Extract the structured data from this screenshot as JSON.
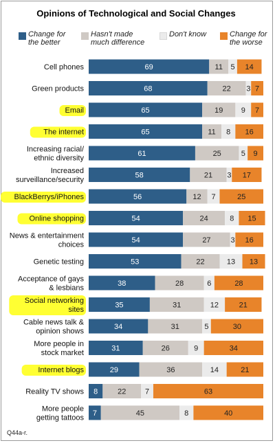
{
  "title": "Opinions of Technological and Social Changes",
  "footnote": "Q44a-r.",
  "colors": {
    "better": "#2e5e88",
    "no_difference": "#cfc9c4",
    "dont_know": "#ebebeb",
    "worse": "#e8842a",
    "highlight": "#ffff33"
  },
  "legend": {
    "better": [
      "Change for",
      "the better"
    ],
    "no_difference": [
      "Hasn't made",
      "much difference"
    ],
    "dont_know": [
      "Don't know"
    ],
    "worse": [
      "Change for",
      "the worse"
    ]
  },
  "chart_data": {
    "type": "bar",
    "stacked": true,
    "orientation": "horizontal",
    "title": "Opinions of Technological and Social Changes",
    "categories": [
      "Cell phones",
      "Green products",
      "Email",
      "The internet",
      "Increasing racial/ ethnic diversity",
      "Increased surveillance/security",
      "BlackBerrys/iPhones",
      "Online shopping",
      "News & entertainment choices",
      "Genetic testing",
      "Acceptance of gays & lesbians",
      "Social networking sites",
      "Cable news talk & opinion shows",
      "More people in stock market",
      "Internet blogs",
      "Reality TV shows",
      "More people getting tattoos"
    ],
    "label_lines": [
      [
        "Cell phones"
      ],
      [
        "Green products"
      ],
      [
        "Email"
      ],
      [
        "The internet"
      ],
      [
        "Increasing racial/",
        "ethnic diversity"
      ],
      [
        "Increased",
        "surveillance/security"
      ],
      [
        "BlackBerrys/iPhones"
      ],
      [
        "Online shopping"
      ],
      [
        "News & entertainment",
        "choices"
      ],
      [
        "Genetic testing"
      ],
      [
        "Acceptance of gays",
        "& lesbians"
      ],
      [
        "Social networking",
        "sites"
      ],
      [
        "Cable news talk &",
        "opinion shows"
      ],
      [
        "More people in",
        "stock market"
      ],
      [
        "Internet blogs"
      ],
      [
        "Reality TV shows"
      ],
      [
        "More people",
        "getting tattoos"
      ]
    ],
    "highlighted": [
      "Email",
      "The internet",
      "BlackBerrys/iPhones",
      "Online shopping",
      "Social networking sites",
      "Internet blogs"
    ],
    "series": [
      {
        "name": "Change for the better",
        "values": [
          69,
          68,
          65,
          65,
          61,
          58,
          56,
          54,
          54,
          53,
          38,
          35,
          34,
          31,
          29,
          8,
          7
        ]
      },
      {
        "name": "Hasn't made much difference",
        "values": [
          11,
          22,
          19,
          11,
          25,
          21,
          12,
          24,
          27,
          22,
          28,
          31,
          31,
          26,
          36,
          22,
          45
        ]
      },
      {
        "name": "Don't know",
        "values": [
          5,
          3,
          9,
          8,
          5,
          3,
          7,
          8,
          3,
          13,
          6,
          12,
          5,
          9,
          14,
          7,
          8
        ]
      },
      {
        "name": "Change for the worse",
        "values": [
          14,
          7,
          7,
          16,
          9,
          17,
          25,
          15,
          16,
          13,
          28,
          21,
          30,
          34,
          21,
          63,
          40
        ]
      }
    ]
  }
}
